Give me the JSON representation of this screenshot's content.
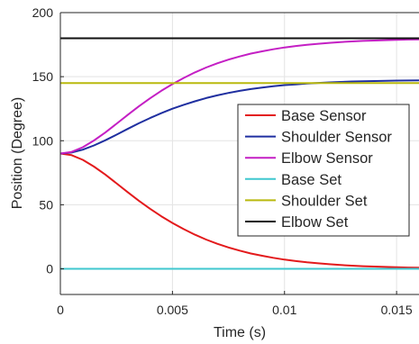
{
  "chart_data": {
    "type": "line",
    "xlabel": "Time (s)",
    "ylabel": "Position (Degree)",
    "xlim": [
      0,
      0.016
    ],
    "ylim": [
      -20,
      200
    ],
    "xticks": [
      {
        "value": 0,
        "label": "0"
      },
      {
        "value": 0.005,
        "label": "0.005"
      },
      {
        "value": 0.01,
        "label": "0.01"
      },
      {
        "value": 0.015,
        "label": "0.015"
      }
    ],
    "yticks": [
      {
        "value": 0,
        "label": "0"
      },
      {
        "value": 50,
        "label": "50"
      },
      {
        "value": 100,
        "label": "100"
      },
      {
        "value": 150,
        "label": "150"
      },
      {
        "value": 200,
        "label": "200"
      }
    ],
    "grid": true,
    "legend_position": "right",
    "x": [
      0,
      0.0005,
      0.001,
      0.0015,
      0.002,
      0.0025,
      0.003,
      0.0035,
      0.004,
      0.0045,
      0.005,
      0.0055,
      0.006,
      0.0065,
      0.007,
      0.0075,
      0.008,
      0.0085,
      0.009,
      0.0095,
      0.01,
      0.0105,
      0.011,
      0.0115,
      0.012,
      0.0125,
      0.013,
      0.0135,
      0.014,
      0.0145,
      0.015,
      0.0155,
      0.016
    ],
    "series": [
      {
        "name": "Base Sensor",
        "color": "#e31a1c",
        "values": [
          90,
          88.7,
          85.1,
          79.8,
          73.6,
          66.8,
          59.9,
          53.2,
          46.9,
          41.1,
          35.8,
          31.0,
          26.7,
          22.9,
          19.6,
          16.7,
          14.2,
          12.0,
          10.2,
          8.6,
          7.2,
          6.1,
          5.1,
          4.3,
          3.6,
          3.0,
          2.5,
          2.1,
          1.8,
          1.5,
          1.2,
          1.0,
          0.9
        ]
      },
      {
        "name": "Shoulder Sensor",
        "color": "#1f2fa0",
        "values": [
          90,
          90.8,
          93.0,
          96.3,
          100.3,
          104.7,
          109.2,
          113.6,
          117.7,
          121.5,
          125.0,
          128.0,
          130.8,
          133.3,
          135.4,
          137.3,
          138.9,
          140.3,
          141.5,
          142.5,
          143.4,
          144.0,
          144.6,
          145.1,
          145.5,
          145.9,
          146.2,
          146.4,
          146.6,
          146.8,
          146.9,
          147.0,
          147.1
        ]
      },
      {
        "name": "Elbow Sensor",
        "color": "#c41fc4",
        "values": [
          90,
          91.3,
          94.9,
          100.2,
          106.4,
          113.2,
          120.1,
          126.8,
          133.1,
          138.9,
          144.2,
          149.0,
          153.3,
          157.1,
          160.4,
          163.3,
          165.8,
          168.0,
          169.8,
          171.4,
          172.8,
          173.9,
          174.9,
          175.7,
          176.4,
          177.0,
          177.5,
          177.9,
          178.2,
          178.5,
          178.8,
          179.0,
          179.1
        ]
      },
      {
        "name": "Base Set",
        "color": "#3fc7cf",
        "values": [
          0,
          0,
          0,
          0,
          0,
          0,
          0,
          0,
          0,
          0,
          0,
          0,
          0,
          0,
          0,
          0,
          0,
          0,
          0,
          0,
          0,
          0,
          0,
          0,
          0,
          0,
          0,
          0,
          0,
          0,
          0,
          0,
          0
        ]
      },
      {
        "name": "Shoulder Set",
        "color": "#b9b90f",
        "values": [
          145,
          145,
          145,
          145,
          145,
          145,
          145,
          145,
          145,
          145,
          145,
          145,
          145,
          145,
          145,
          145,
          145,
          145,
          145,
          145,
          145,
          145,
          145,
          145,
          145,
          145,
          145,
          145,
          145,
          145,
          145,
          145,
          145
        ]
      },
      {
        "name": "Elbow Set",
        "color": "#111111",
        "values": [
          180,
          180,
          180,
          180,
          180,
          180,
          180,
          180,
          180,
          180,
          180,
          180,
          180,
          180,
          180,
          180,
          180,
          180,
          180,
          180,
          180,
          180,
          180,
          180,
          180,
          180,
          180,
          180,
          180,
          180,
          180,
          180,
          180
        ]
      }
    ]
  }
}
